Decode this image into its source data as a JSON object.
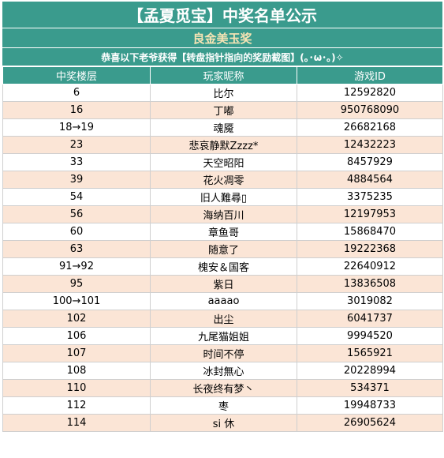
{
  "title": "【孟夏觅宝】中奖名单公示",
  "prize_name": "良金美玉奖",
  "notice": "恭喜以下老爷获得【转盘指针指向的奖励截图】(｡･ω･｡)✧",
  "columns": [
    "中奖楼层",
    "玩家昵称",
    "游戏ID"
  ],
  "colors": {
    "header_bg": "#3a9b8d",
    "prize_text": "#f7e4b4",
    "stripe": "#fbe5d6"
  },
  "rows": [
    {
      "floor": "6",
      "name": "比尔",
      "id": "12592820"
    },
    {
      "floor": "16",
      "name": "丁嘟",
      "id": "950768090"
    },
    {
      "floor": "18→19",
      "name": "魂魇",
      "id": "26682168"
    },
    {
      "floor": "23",
      "name": "悲哀静默Zzzz*",
      "id": "12432223"
    },
    {
      "floor": "33",
      "name": "天空昭阳",
      "id": "8457929"
    },
    {
      "floor": "39",
      "name": "花火凋零",
      "id": "4884564"
    },
    {
      "floor": "54",
      "name": "旧人難尋▯",
      "id": "3375235"
    },
    {
      "floor": "56",
      "name": "海纳百川",
      "id": "12197953"
    },
    {
      "floor": "60",
      "name": "章鱼哥",
      "id": "15868470"
    },
    {
      "floor": "63",
      "name": "随意了",
      "id": "19222368"
    },
    {
      "floor": "91→92",
      "name": "槐安＆国客",
      "id": "22640912"
    },
    {
      "floor": "95",
      "name": "紫日",
      "id": "13836508"
    },
    {
      "floor": "100→101",
      "name": "aaaao",
      "id": "3019082"
    },
    {
      "floor": "102",
      "name": "出尘",
      "id": "6041737"
    },
    {
      "floor": "106",
      "name": "九尾猫姐姐",
      "id": "9994520"
    },
    {
      "floor": "107",
      "name": "时间不停",
      "id": "1565921"
    },
    {
      "floor": "108",
      "name": "冰封無心",
      "id": "20228994"
    },
    {
      "floor": "110",
      "name": "长夜终有梦丶",
      "id": "534371"
    },
    {
      "floor": "112",
      "name": "枣",
      "id": "19948733"
    },
    {
      "floor": "114",
      "name": "si 休",
      "id": "26905624"
    }
  ]
}
